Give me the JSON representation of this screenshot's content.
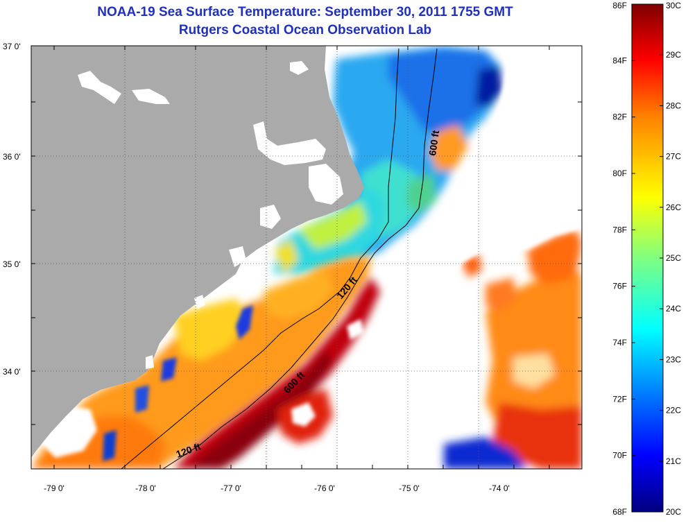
{
  "title": "NOAA-19 Sea Surface Temperature:  September 30, 2011 1755 GMT",
  "subtitle": "Rutgers Coastal Ocean Observation Lab",
  "axes": {
    "lat_labels": [
      "37 0'",
      "36 0'",
      "35 0'",
      "34 0'"
    ],
    "lon_labels": [
      "-79 0'",
      "-78 0'",
      "-77 0'",
      "-76 0'",
      "-75 0'",
      "-74 0'"
    ]
  },
  "contours": {
    "c600_north": "600 ft",
    "c120_mid": "120 ft",
    "c600_south": "600 ft",
    "c120_south": "120 ft"
  },
  "colorbar": {
    "f_labels": [
      "86F",
      "84F",
      "82F",
      "80F",
      "78F",
      "76F",
      "74F",
      "72F",
      "70F",
      "68F"
    ],
    "c_labels": [
      "30C",
      "29C",
      "28C",
      "27C",
      "26C",
      "25C",
      "24C",
      "23C",
      "22C",
      "21C",
      "20C"
    ],
    "colors": [
      "#00007f",
      "#0000ff",
      "#0080ff",
      "#00ffff",
      "#80ff80",
      "#ffff00",
      "#ff8000",
      "#ff0000",
      "#7f0000"
    ]
  },
  "colors": {
    "land": "#aaaaaa",
    "cloud": "#ffffff",
    "title": "#1f2fbf"
  }
}
